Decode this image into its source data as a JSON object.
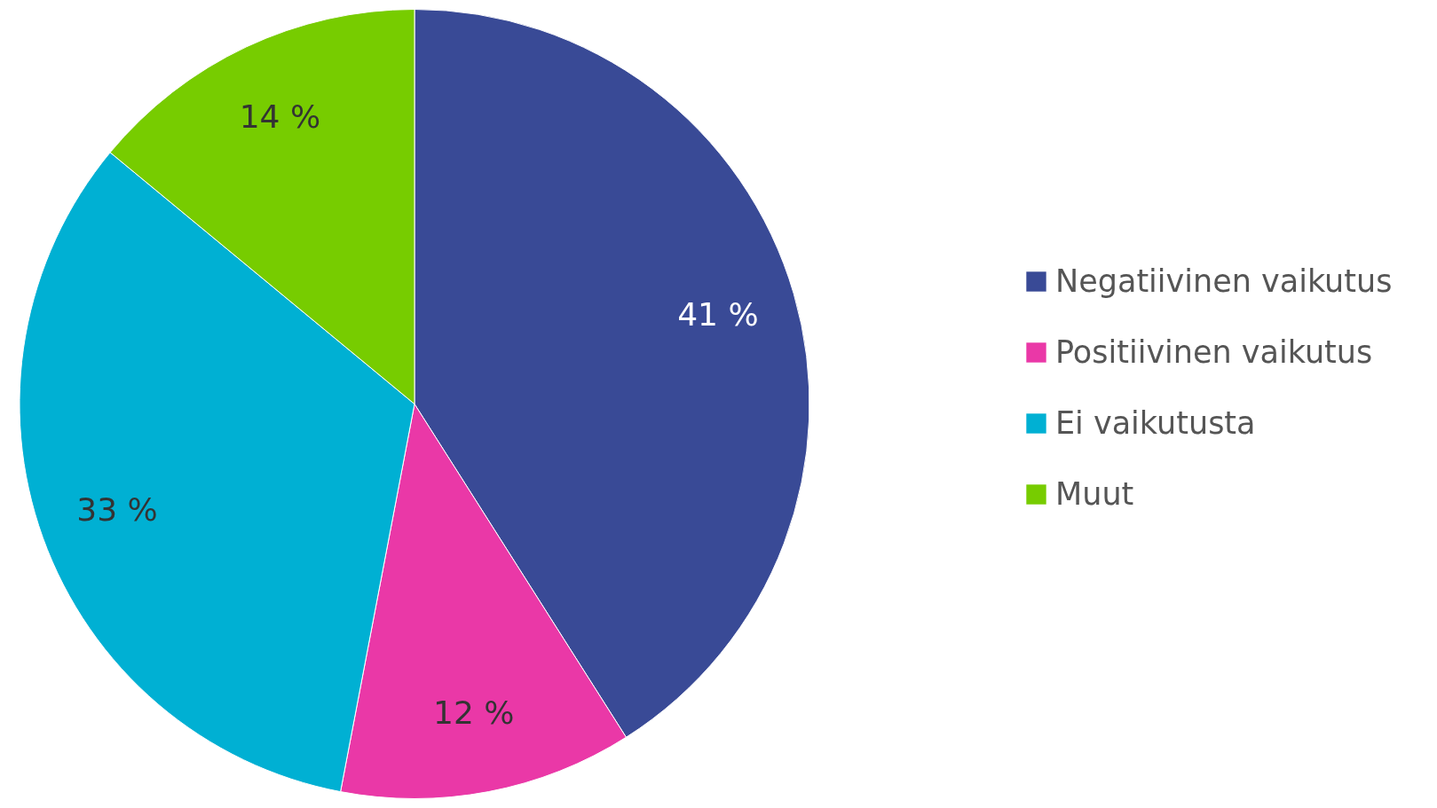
{
  "chart_data": {
    "type": "pie",
    "categories": [
      "Negatiivinen vaikutus",
      "Positiivinen vaikutus",
      "Ei vaikutusta",
      "Muut"
    ],
    "values": [
      41,
      12,
      33,
      14
    ],
    "colors": [
      "#394a96",
      "#ea38a7",
      "#00b0d3",
      "#77cc00"
    ],
    "value_labels": [
      "41 %",
      "12 %",
      "33 %",
      "14 %"
    ],
    "legend": "right"
  }
}
